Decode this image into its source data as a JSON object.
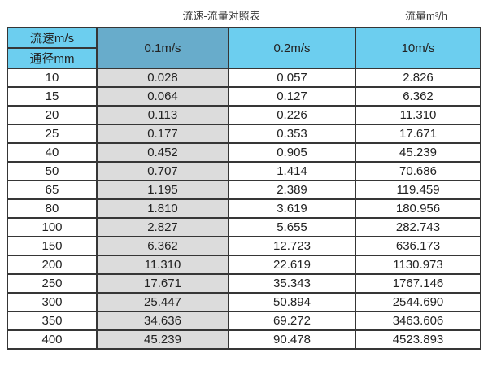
{
  "titles": {
    "left": "流速-流量对照表",
    "right": "流量m³/h"
  },
  "table": {
    "header": {
      "velocity_label": "流速m/s",
      "diameter_label": "通径mm",
      "columns": [
        "0.1m/s",
        "0.2m/s",
        "10m/s"
      ]
    },
    "rows": [
      {
        "dn": "10",
        "v01": "0.028",
        "v02": "0.057",
        "v10": "2.826"
      },
      {
        "dn": "15",
        "v01": "0.064",
        "v02": "0.127",
        "v10": "6.362"
      },
      {
        "dn": "20",
        "v01": "0.113",
        "v02": "0.226",
        "v10": "11.310"
      },
      {
        "dn": "25",
        "v01": "0.177",
        "v02": "0.353",
        "v10": "17.671"
      },
      {
        "dn": "40",
        "v01": "0.452",
        "v02": "0.905",
        "v10": "45.239"
      },
      {
        "dn": "50",
        "v01": "0.707",
        "v02": "1.414",
        "v10": "70.686"
      },
      {
        "dn": "65",
        "v01": "1.195",
        "v02": "2.389",
        "v10": "119.459"
      },
      {
        "dn": "80",
        "v01": "1.810",
        "v02": "3.619",
        "v10": "180.956"
      },
      {
        "dn": "100",
        "v01": "2.827",
        "v02": "5.655",
        "v10": "282.743"
      },
      {
        "dn": "150",
        "v01": "6.362",
        "v02": "12.723",
        "v10": "636.173"
      },
      {
        "dn": "200",
        "v01": "11.310",
        "v02": "22.619",
        "v10": "1130.973"
      },
      {
        "dn": "250",
        "v01": "17.671",
        "v02": "35.343",
        "v10": "1767.146"
      },
      {
        "dn": "300",
        "v01": "25.447",
        "v02": "50.894",
        "v10": "2544.690"
      },
      {
        "dn": "350",
        "v01": "34.636",
        "v02": "69.272",
        "v10": "3463.606"
      },
      {
        "dn": "400",
        "v01": "45.239",
        "v02": "90.478",
        "v10": "4523.893"
      }
    ]
  },
  "colors": {
    "header_light_blue": "#6cceef",
    "header_dark_blue": "#68accb",
    "col_gray": "#dcdcdc",
    "border_color": "#363636",
    "text_color": "#222222",
    "title_color": "#3a3a3a"
  },
  "chart_data": {
    "type": "table",
    "title": "流速-流量对照表",
    "unit_label": "流量m³/h",
    "row_header_label": "通径mm",
    "column_header_label": "流速m/s",
    "columns": [
      "通径mm",
      "0.1m/s",
      "0.2m/s",
      "10m/s"
    ],
    "rows": [
      [
        10,
        0.028,
        0.057,
        2.826
      ],
      [
        15,
        0.064,
        0.127,
        6.362
      ],
      [
        20,
        0.113,
        0.226,
        11.31
      ],
      [
        25,
        0.177,
        0.353,
        17.671
      ],
      [
        40,
        0.452,
        0.905,
        45.239
      ],
      [
        50,
        0.707,
        1.414,
        70.686
      ],
      [
        65,
        1.195,
        2.389,
        119.459
      ],
      [
        80,
        1.81,
        3.619,
        180.956
      ],
      [
        100,
        2.827,
        5.655,
        282.743
      ],
      [
        150,
        6.362,
        12.723,
        636.173
      ],
      [
        200,
        11.31,
        22.619,
        1130.973
      ],
      [
        250,
        17.671,
        35.343,
        1767.146
      ],
      [
        300,
        25.447,
        50.894,
        2544.69
      ],
      [
        350,
        34.636,
        69.272,
        3463.606
      ],
      [
        400,
        45.239,
        90.478,
        4523.893
      ]
    ]
  }
}
